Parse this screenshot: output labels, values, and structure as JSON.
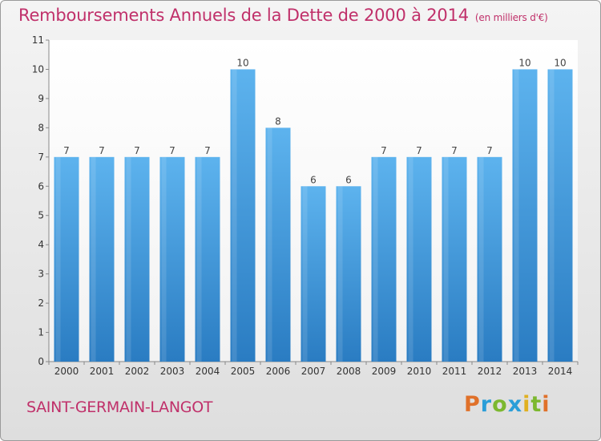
{
  "header": {
    "title": "Remboursements Annuels de la Dette de 2000 à 2014",
    "units": "(en milliers d'€)"
  },
  "footer": {
    "commune": "SAINT-GERMAIN-LANGOT",
    "brand": "Proxiti"
  },
  "colors": {
    "bar": "#3a8fd4",
    "title": "#c0306a"
  },
  "chart_data": {
    "type": "bar",
    "title": "Remboursements Annuels de la Dette de 2000 à 2014",
    "units": "(en milliers d'€)",
    "categories": [
      "2000",
      "2001",
      "2002",
      "2003",
      "2004",
      "2005",
      "2006",
      "2007",
      "2008",
      "2009",
      "2010",
      "2011",
      "2012",
      "2013",
      "2014"
    ],
    "values": [
      7,
      7,
      7,
      7,
      7,
      10,
      8,
      6,
      6,
      7,
      7,
      7,
      7,
      10,
      10
    ],
    "ylim": [
      0,
      11
    ],
    "yticks": [
      0,
      1,
      2,
      3,
      4,
      5,
      6,
      7,
      8,
      9,
      10,
      11
    ],
    "grid": false,
    "data_labels": true
  }
}
